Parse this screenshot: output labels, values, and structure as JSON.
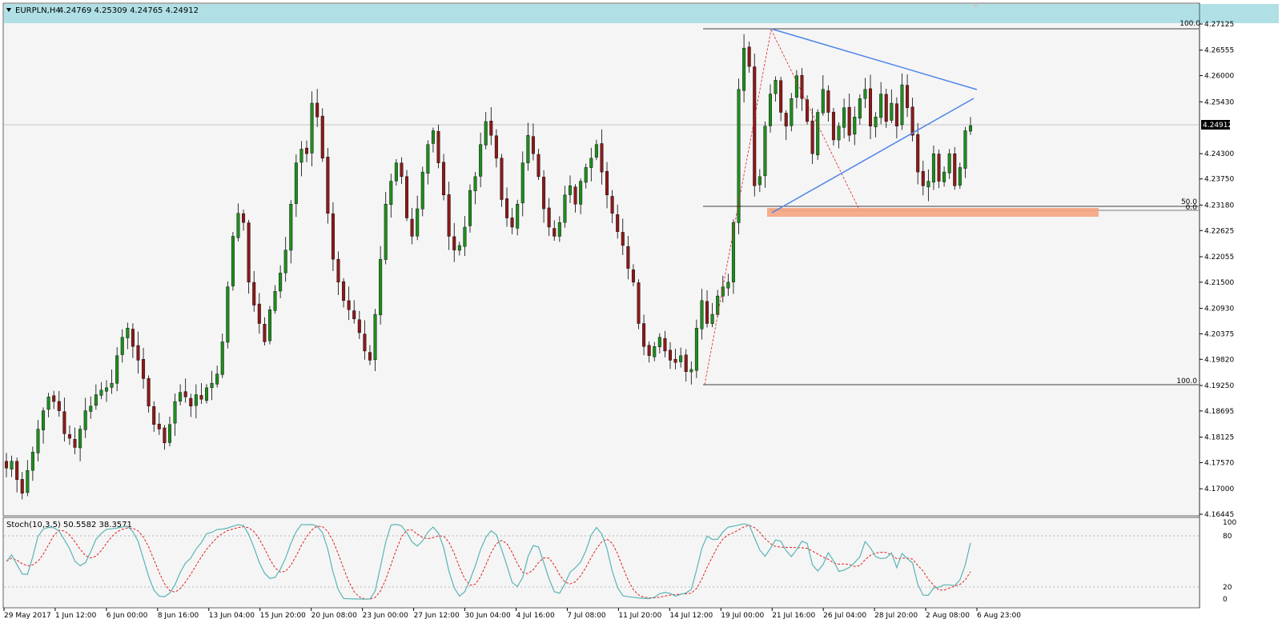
{
  "header": {
    "symbol": "EURPLN,H4",
    "ohlc": "4.24769 4.25309 4.24765 4.24912"
  },
  "price_scale": {
    "labels": [
      "4.27125",
      "4.26555",
      "4.26000",
      "4.25430",
      "4.24300",
      "4.23750",
      "4.23180",
      "4.22625",
      "4.22055",
      "4.21500",
      "4.20930",
      "4.20375",
      "4.19820",
      "4.19250",
      "4.18695",
      "4.18125",
      "4.17570",
      "4.17000",
      "4.16445"
    ],
    "current_price": "4.24912"
  },
  "fib": {
    "labels_top": "100.0",
    "label_50": "50.0",
    "label_0": "0.0",
    "labels_bottom": "100.0"
  },
  "time_axis": {
    "labels": [
      "29 May 2017",
      "1 Jun 12:00",
      "6 Jun 00:00",
      "8 Jun 16:00",
      "13 Jun 04:00",
      "15 Jun 20:00",
      "20 Jun 08:00",
      "23 Jun 00:00",
      "27 Jun 12:00",
      "30 Jun 04:00",
      "4 Jul 16:00",
      "7 Jul 08:00",
      "11 Jul 20:00",
      "14 Jul 12:00",
      "19 Jul 00:00",
      "21 Jul 16:00",
      "26 Jul 04:00",
      "28 Jul 20:00",
      "2 Aug 08:00",
      "6 Aug 23:00"
    ]
  },
  "stoch": {
    "title": "Stoch(10,3,5) 50.5582 38.3571",
    "levels": [
      "100",
      "80",
      "20",
      "0"
    ]
  },
  "colors": {
    "header_band": "#b0e0e6",
    "bull": "#1f8c1f",
    "bear": "#8b1a1a",
    "trend": "#4f86e8",
    "zone": "#f4a07a",
    "stoch_main": "#5ab4b4",
    "stoch_signal": "#e02020"
  },
  "chart_data": {
    "type": "candlestick",
    "symbol": "EURPLN",
    "timeframe": "H4",
    "y_range": [
      4.16445,
      4.27125
    ],
    "closes": [
      4.1745,
      4.176,
      4.172,
      4.169,
      4.174,
      4.178,
      4.183,
      4.187,
      4.19,
      4.189,
      4.187,
      4.182,
      4.181,
      4.179,
      4.183,
      4.187,
      4.188,
      4.1905,
      4.1915,
      4.192,
      4.193,
      4.199,
      4.203,
      4.205,
      4.201,
      4.198,
      4.194,
      4.188,
      4.184,
      4.183,
      4.18,
      4.184,
      4.189,
      4.191,
      4.19,
      4.188,
      4.1905,
      4.1895,
      4.192,
      4.193,
      4.195,
      4.202,
      4.214,
      4.225,
      4.23,
      4.228,
      4.215,
      4.21,
      4.206,
      4.202,
      4.209,
      4.213,
      4.217,
      4.222,
      4.232,
      4.241,
      4.244,
      4.243,
      4.254,
      4.251,
      4.242,
      4.23,
      4.22,
      4.215,
      4.211,
      4.209,
      4.207,
      4.204,
      4.2,
      4.198,
      4.208,
      4.22,
      4.232,
      4.237,
      4.241,
      4.238,
      4.229,
      4.225,
      4.231,
      4.239,
      4.245,
      4.248,
      4.241,
      4.234,
      4.225,
      4.222,
      4.223,
      4.227,
      4.235,
      4.238,
      4.245,
      4.25,
      4.247,
      4.242,
      4.233,
      4.229,
      4.227,
      4.232,
      4.241,
      4.247,
      4.243,
      4.238,
      4.231,
      4.227,
      4.225,
      4.228,
      4.234,
      4.236,
      4.232,
      4.237,
      4.24,
      4.242,
      4.245,
      4.239,
      4.234,
      4.23,
      4.226,
      4.223,
      4.218,
      4.215,
      4.206,
      4.201,
      4.199,
      4.201,
      4.203,
      4.2,
      4.198,
      4.1975,
      4.199,
      4.1955,
      4.196,
      4.205,
      4.211,
      4.206,
      4.208,
      4.212,
      4.214,
      4.215,
      4.228,
      4.257,
      4.266,
      4.262,
      4.236,
      4.238,
      4.249,
      4.256,
      4.259,
      4.252,
      4.249,
      4.255,
      4.26,
      4.255,
      4.25,
      4.243,
      4.252,
      4.257,
      4.252,
      4.246,
      4.249,
      4.253,
      4.247,
      4.251,
      4.255,
      4.257,
      4.249,
      4.251,
      4.256,
      4.25,
      4.254,
      4.249,
      4.258,
      4.253,
      4.247,
      4.239,
      4.236,
      4.237,
      4.243,
      4.237,
      4.239,
      4.243,
      4.236,
      4.24,
      4.248,
      4.2491
    ]
  }
}
